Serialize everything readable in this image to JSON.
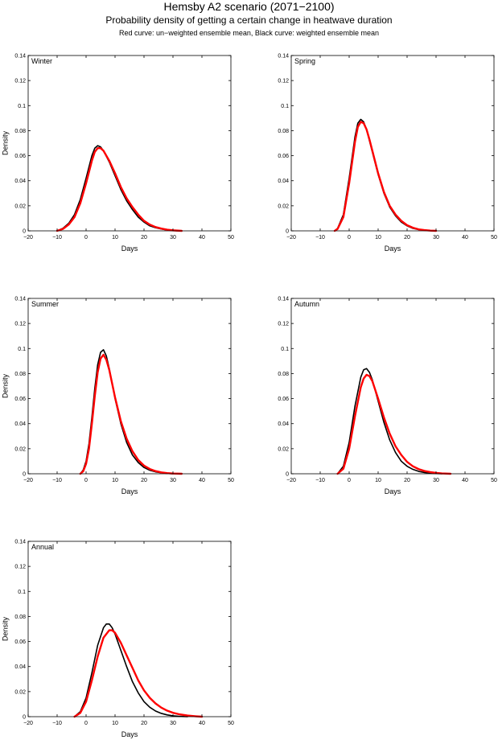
{
  "header": {
    "title": "Hemsby A2 scenario (2071−2100)",
    "subtitle": "Probability density of getting a certain change in heatwave duration",
    "note": "Red curve: un−weighted ensemble mean, Black curve: weighted ensemble mean"
  },
  "colors": {
    "unweighted": "#ff0000",
    "weighted": "#000000"
  },
  "chart_data": [
    {
      "type": "line",
      "panel": "Winter",
      "xlabel": "Days",
      "ylabel": "Density",
      "xlim": [
        -20,
        50
      ],
      "ylim": [
        0,
        0.14
      ],
      "xticks": [
        -20,
        -10,
        0,
        10,
        20,
        30,
        40,
        50
      ],
      "yticks": [
        0,
        0.02,
        0.04,
        0.06,
        0.08,
        0.1,
        0.12,
        0.14
      ],
      "series": [
        {
          "color": "#000000",
          "x": [
            -10,
            -8,
            -6,
            -4,
            -2,
            0,
            2,
            3,
            4,
            5,
            6,
            8,
            10,
            12,
            14,
            16,
            18,
            20,
            22,
            24,
            26,
            28,
            30,
            32
          ],
          "y": [
            0,
            0.002,
            0.006,
            0.013,
            0.025,
            0.042,
            0.06,
            0.066,
            0.068,
            0.067,
            0.064,
            0.055,
            0.044,
            0.033,
            0.024,
            0.017,
            0.011,
            0.007,
            0.004,
            0.0025,
            0.0015,
            0.0007,
            0.0003,
            0
          ]
        },
        {
          "color": "#ff0000",
          "x": [
            -10,
            -8,
            -6,
            -4,
            -2,
            0,
            2,
            3,
            4,
            5,
            6,
            8,
            10,
            12,
            14,
            16,
            18,
            20,
            22,
            24,
            26,
            28,
            30,
            33
          ],
          "y": [
            0,
            0.0015,
            0.005,
            0.011,
            0.022,
            0.038,
            0.056,
            0.063,
            0.066,
            0.066,
            0.064,
            0.056,
            0.046,
            0.035,
            0.026,
            0.019,
            0.013,
            0.008,
            0.005,
            0.003,
            0.0018,
            0.0009,
            0.0004,
            0
          ]
        }
      ]
    },
    {
      "type": "line",
      "panel": "Spring",
      "xlabel": "Days",
      "ylabel": "",
      "xlim": [
        -20,
        50
      ],
      "ylim": [
        0,
        0.14
      ],
      "xticks": [
        -20,
        -10,
        0,
        10,
        20,
        30,
        40,
        50
      ],
      "yticks": [
        0,
        0.02,
        0.04,
        0.06,
        0.08,
        0.1,
        0.12,
        0.14
      ],
      "series": [
        {
          "color": "#000000",
          "x": [
            -5,
            -4,
            -2,
            0,
            2,
            3,
            4,
            5,
            6,
            7,
            8,
            10,
            12,
            14,
            16,
            18,
            20,
            22,
            24,
            26,
            28,
            30
          ],
          "y": [
            0,
            0.002,
            0.013,
            0.042,
            0.075,
            0.086,
            0.089,
            0.087,
            0.081,
            0.072,
            0.063,
            0.045,
            0.03,
            0.019,
            0.012,
            0.007,
            0.004,
            0.002,
            0.001,
            0.0005,
            0.0002,
            0
          ]
        },
        {
          "color": "#ff0000",
          "x": [
            -5,
            -4,
            -2,
            0,
            2,
            3,
            4,
            5,
            6,
            7,
            8,
            10,
            12,
            14,
            16,
            18,
            20,
            22,
            24,
            26,
            28,
            30
          ],
          "y": [
            0,
            0.0015,
            0.011,
            0.038,
            0.071,
            0.083,
            0.087,
            0.086,
            0.081,
            0.073,
            0.064,
            0.046,
            0.031,
            0.02,
            0.013,
            0.008,
            0.0045,
            0.0025,
            0.0012,
            0.0006,
            0.0002,
            0
          ]
        }
      ]
    },
    {
      "type": "line",
      "panel": "Summer",
      "xlabel": "Days",
      "ylabel": "Density",
      "xlim": [
        -20,
        50
      ],
      "ylim": [
        0,
        0.14
      ],
      "xticks": [
        -20,
        -10,
        0,
        10,
        20,
        30,
        40,
        50
      ],
      "yticks": [
        0,
        0.02,
        0.04,
        0.06,
        0.08,
        0.1,
        0.12,
        0.14
      ],
      "series": [
        {
          "color": "#000000",
          "x": [
            -2,
            -1,
            0,
            1,
            2,
            3,
            4,
            5,
            6,
            7,
            8,
            9,
            10,
            12,
            14,
            16,
            18,
            20,
            22,
            24,
            26,
            28,
            30
          ],
          "y": [
            0,
            0.003,
            0.01,
            0.024,
            0.045,
            0.068,
            0.087,
            0.097,
            0.099,
            0.094,
            0.084,
            0.072,
            0.06,
            0.04,
            0.025,
            0.015,
            0.009,
            0.005,
            0.0028,
            0.0015,
            0.0008,
            0.0003,
            0
          ]
        },
        {
          "color": "#ff0000",
          "x": [
            -2,
            -1,
            0,
            1,
            2,
            3,
            4,
            5,
            6,
            7,
            8,
            9,
            10,
            12,
            14,
            16,
            18,
            20,
            22,
            24,
            26,
            28,
            30,
            33
          ],
          "y": [
            0,
            0.002,
            0.008,
            0.02,
            0.04,
            0.062,
            0.081,
            0.092,
            0.095,
            0.091,
            0.083,
            0.072,
            0.061,
            0.042,
            0.028,
            0.018,
            0.011,
            0.0065,
            0.0038,
            0.0021,
            0.0011,
            0.0005,
            0.0002,
            0
          ]
        }
      ]
    },
    {
      "type": "line",
      "panel": "Autumn",
      "xlabel": "Days",
      "ylabel": "",
      "xlim": [
        -20,
        50
      ],
      "ylim": [
        0,
        0.14
      ],
      "xticks": [
        -20,
        -10,
        0,
        10,
        20,
        30,
        40,
        50
      ],
      "yticks": [
        0,
        0.02,
        0.04,
        0.06,
        0.08,
        0.1,
        0.12,
        0.14
      ],
      "series": [
        {
          "color": "#000000",
          "x": [
            -4,
            -2,
            0,
            2,
            4,
            5,
            6,
            7,
            8,
            10,
            12,
            14,
            16,
            18,
            20,
            22,
            24,
            26,
            28,
            30,
            32
          ],
          "y": [
            0,
            0.006,
            0.025,
            0.054,
            0.077,
            0.083,
            0.084,
            0.081,
            0.075,
            0.058,
            0.041,
            0.027,
            0.017,
            0.01,
            0.006,
            0.0035,
            0.0019,
            0.001,
            0.0005,
            0.0002,
            0
          ]
        },
        {
          "color": "#ff0000",
          "x": [
            -4,
            -2,
            0,
            2,
            4,
            5,
            6,
            7,
            8,
            10,
            12,
            14,
            16,
            18,
            20,
            22,
            24,
            26,
            28,
            30,
            32,
            35
          ],
          "y": [
            0,
            0.004,
            0.02,
            0.046,
            0.069,
            0.076,
            0.079,
            0.078,
            0.074,
            0.06,
            0.045,
            0.032,
            0.022,
            0.015,
            0.0095,
            0.006,
            0.0037,
            0.0022,
            0.0013,
            0.0007,
            0.0003,
            0
          ]
        }
      ]
    },
    {
      "type": "line",
      "panel": "Annual",
      "xlabel": "Days",
      "ylabel": "Density",
      "xlim": [
        -20,
        50
      ],
      "ylim": [
        0,
        0.14
      ],
      "xticks": [
        -20,
        -10,
        0,
        10,
        20,
        30,
        40,
        50
      ],
      "yticks": [
        0,
        0.02,
        0.04,
        0.06,
        0.08,
        0.1,
        0.12,
        0.14
      ],
      "series": [
        {
          "color": "#000000",
          "x": [
            -4,
            -2,
            0,
            2,
            4,
            6,
            7,
            8,
            9,
            10,
            12,
            14,
            16,
            18,
            20,
            22,
            24,
            26,
            28,
            30,
            32,
            35
          ],
          "y": [
            0,
            0.004,
            0.015,
            0.035,
            0.057,
            0.071,
            0.074,
            0.074,
            0.071,
            0.066,
            0.053,
            0.04,
            0.028,
            0.019,
            0.012,
            0.0075,
            0.0045,
            0.0026,
            0.0014,
            0.0007,
            0.0003,
            0
          ]
        },
        {
          "color": "#ff0000",
          "x": [
            -4,
            -2,
            0,
            2,
            4,
            6,
            8,
            9,
            10,
            12,
            14,
            16,
            18,
            20,
            22,
            24,
            26,
            28,
            30,
            32,
            35,
            38,
            40
          ],
          "y": [
            0,
            0.003,
            0.012,
            0.029,
            0.048,
            0.063,
            0.069,
            0.069,
            0.067,
            0.059,
            0.049,
            0.039,
            0.029,
            0.021,
            0.015,
            0.0105,
            0.0072,
            0.0048,
            0.0031,
            0.002,
            0.0009,
            0.0003,
            0
          ]
        }
      ]
    }
  ]
}
